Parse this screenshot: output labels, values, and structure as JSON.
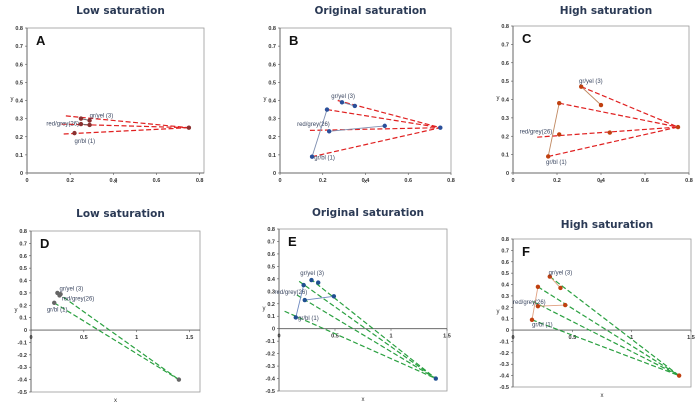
{
  "chart_data": [
    {
      "type": "scatter",
      "letter": "A",
      "title": "Low saturation",
      "xlabel": "x",
      "ylabel": "y",
      "xlim": [
        0,
        0.82
      ],
      "ylim": [
        0,
        0.8
      ],
      "xticks": [
        0,
        0.2,
        0.4,
        0.6,
        0.8
      ],
      "yticks": [
        0,
        0.1,
        0.2,
        0.3,
        0.4,
        0.5,
        0.6,
        0.7,
        0.8
      ],
      "dash_color": "#e02020",
      "point_color": "#8a3030",
      "solid_color": "#666666",
      "convergence": [
        0.75,
        0.25
      ],
      "points": [
        [
          0.25,
          0.3
        ],
        [
          0.29,
          0.29
        ],
        [
          0.29,
          0.265
        ],
        [
          0.25,
          0.27
        ],
        [
          0.22,
          0.22
        ]
      ],
      "solid_segments": [
        [
          0,
          1
        ],
        [
          3,
          2
        ]
      ],
      "dashed_from": [
        [
          0.18,
          0.315
        ],
        [
          0.16,
          0.27
        ],
        [
          0.17,
          0.215
        ]
      ],
      "annotations": [
        {
          "text": "gr/yel (3)",
          "x": 0.29,
          "y": 0.305
        },
        {
          "text": "red/grey(26)",
          "x": 0.09,
          "y": 0.262
        },
        {
          "text": "gr/bl (1)",
          "x": 0.22,
          "y": 0.165
        }
      ]
    },
    {
      "type": "scatter",
      "letter": "B",
      "title": "Original saturation",
      "xlabel": "x",
      "ylabel": "y",
      "xlim": [
        0,
        0.8
      ],
      "ylim": [
        0,
        0.8
      ],
      "xticks": [
        0,
        0.2,
        0.4,
        0.6,
        0.8
      ],
      "yticks": [
        0,
        0.1,
        0.2,
        0.3,
        0.4,
        0.5,
        0.6,
        0.7,
        0.8
      ],
      "dash_color": "#e02020",
      "point_color": "#2a4f9a",
      "solid_color": "#7f8fb0",
      "convergence": [
        0.75,
        0.25
      ],
      "points": [
        [
          0.29,
          0.39
        ],
        [
          0.35,
          0.37
        ],
        [
          0.22,
          0.35
        ],
        [
          0.23,
          0.23
        ],
        [
          0.49,
          0.26
        ],
        [
          0.15,
          0.09
        ]
      ],
      "solid_segments": [
        [
          2,
          5
        ],
        [
          3,
          4
        ],
        [
          0,
          1
        ]
      ],
      "dashed_from": [
        [
          0.27,
          0.4
        ],
        [
          0.22,
          0.35
        ],
        [
          0.14,
          0.235
        ],
        [
          0.15,
          0.09
        ]
      ],
      "annotations": [
        {
          "text": "gr/yel (3)",
          "x": 0.24,
          "y": 0.415
        },
        {
          "text": "red/grey(26)",
          "x": 0.08,
          "y": 0.26
        },
        {
          "text": "gr/bl (1)",
          "x": 0.16,
          "y": 0.075
        }
      ]
    },
    {
      "type": "scatter",
      "letter": "C",
      "title": "High saturation",
      "xlabel": "x",
      "ylabel": "y",
      "xlim": [
        0,
        0.8
      ],
      "ylim": [
        0,
        0.8
      ],
      "xticks": [
        0,
        0.2,
        0.4,
        0.6,
        0.8
      ],
      "yticks": [
        0,
        0.1,
        0.2,
        0.3,
        0.4,
        0.5,
        0.6,
        0.7,
        0.8
      ],
      "dash_color": "#e02020",
      "point_color": "#c04010",
      "solid_color": "#c08860",
      "convergence": [
        0.75,
        0.25
      ],
      "points": [
        [
          0.31,
          0.47
        ],
        [
          0.4,
          0.37
        ],
        [
          0.21,
          0.38
        ],
        [
          0.21,
          0.21
        ],
        [
          0.44,
          0.22
        ],
        [
          0.16,
          0.09
        ]
      ],
      "solid_segments": [
        [
          0,
          1
        ],
        [
          2,
          5
        ]
      ],
      "dashed_from": [
        [
          0.31,
          0.47
        ],
        [
          0.21,
          0.38
        ],
        [
          0.11,
          0.195
        ],
        [
          0.16,
          0.09
        ]
      ],
      "annotations": [
        {
          "text": "gr/yel (3)",
          "x": 0.3,
          "y": 0.49
        },
        {
          "text": "red/grey(26)",
          "x": 0.03,
          "y": 0.215
        },
        {
          "text": "gr/bl (1)",
          "x": 0.15,
          "y": 0.05
        }
      ]
    },
    {
      "type": "scatter",
      "letter": "D",
      "title": "Low saturation",
      "xlabel": "x",
      "ylabel": "y",
      "xlim": [
        0,
        1.6
      ],
      "ylim": [
        -0.5,
        0.8
      ],
      "xticks": [
        0,
        0.5,
        1,
        1.5
      ],
      "yticks": [
        -0.5,
        -0.4,
        -0.3,
        -0.2,
        -0.1,
        0,
        0.1,
        0.2,
        0.3,
        0.4,
        0.5,
        0.6,
        0.7,
        0.8
      ],
      "dash_color": "#2aa040",
      "point_color": "#666666",
      "solid_color": "#888888",
      "convergence": [
        1.4,
        -0.4
      ],
      "points": [
        [
          0.25,
          0.3
        ],
        [
          0.28,
          0.29
        ],
        [
          0.27,
          0.28
        ],
        [
          0.22,
          0.22
        ]
      ],
      "solid_segments": [
        [
          0,
          1
        ]
      ],
      "dashed_from": [
        [
          0.25,
          0.3
        ],
        [
          0.22,
          0.22
        ]
      ],
      "annotations": [
        {
          "text": "gr/yel (3)",
          "x": 0.27,
          "y": 0.32
        },
        {
          "text": "red/grey(26)",
          "x": 0.29,
          "y": 0.24
        },
        {
          "text": "gr/bl (1)",
          "x": 0.15,
          "y": 0.15
        }
      ]
    },
    {
      "type": "scatter",
      "letter": "E",
      "title": "Original saturation",
      "xlabel": "x",
      "ylabel": "y",
      "xlim": [
        0,
        1.5
      ],
      "ylim": [
        -0.5,
        0.8
      ],
      "xticks": [
        0,
        0.5,
        1,
        1.5
      ],
      "yticks": [
        -0.5,
        -0.4,
        -0.3,
        -0.2,
        -0.1,
        0,
        0.1,
        0.2,
        0.3,
        0.4,
        0.5,
        0.6,
        0.7,
        0.8
      ],
      "dash_color": "#2aa040",
      "point_color": "#1f4f90",
      "solid_color": "#6d88c0",
      "convergence": [
        1.4,
        -0.4
      ],
      "points": [
        [
          0.29,
          0.39
        ],
        [
          0.35,
          0.37
        ],
        [
          0.22,
          0.35
        ],
        [
          0.23,
          0.23
        ],
        [
          0.49,
          0.26
        ],
        [
          0.15,
          0.09
        ]
      ],
      "solid_segments": [
        [
          2,
          5
        ],
        [
          3,
          4
        ]
      ],
      "dashed_from": [
        [
          0.28,
          0.4
        ],
        [
          0.18,
          0.38
        ],
        [
          0.16,
          0.27
        ],
        [
          0.05,
          0.14
        ]
      ],
      "annotations": [
        {
          "text": "gr/yel (3)",
          "x": 0.19,
          "y": 0.43
        },
        {
          "text": "red/grey(26)",
          "x": -0.04,
          "y": 0.28
        },
        {
          "text": "gr/bl (1)",
          "x": 0.17,
          "y": 0.07
        }
      ]
    },
    {
      "type": "scatter",
      "letter": "F",
      "title": "High saturation",
      "xlabel": "x",
      "ylabel": "y",
      "xlim": [
        0,
        1.5
      ],
      "ylim": [
        -0.5,
        0.8
      ],
      "xticks": [
        0,
        0.5,
        1,
        1.5
      ],
      "yticks": [
        -0.5,
        -0.4,
        -0.3,
        -0.2,
        -0.1,
        0,
        0.1,
        0.2,
        0.3,
        0.4,
        0.5,
        0.6,
        0.7,
        0.8
      ],
      "dash_color": "#2aa040",
      "point_color": "#c04010",
      "solid_color": "#e0a080",
      "convergence": [
        1.4,
        -0.4
      ],
      "points": [
        [
          0.31,
          0.47
        ],
        [
          0.4,
          0.37
        ],
        [
          0.21,
          0.38
        ],
        [
          0.21,
          0.21
        ],
        [
          0.44,
          0.22
        ],
        [
          0.16,
          0.09
        ]
      ],
      "solid_segments": [
        [
          0,
          1
        ],
        [
          2,
          5
        ],
        [
          3,
          4
        ]
      ],
      "dashed_from": [
        [
          0.31,
          0.47
        ],
        [
          0.21,
          0.38
        ],
        [
          0.17,
          0.25
        ],
        [
          0.16,
          0.09
        ]
      ],
      "annotations": [
        {
          "text": "gr/yel (3)",
          "x": 0.3,
          "y": 0.49
        },
        {
          "text": "red/grey(26)",
          "x": 0.0,
          "y": 0.23
        },
        {
          "text": "gr/bl (1)",
          "x": 0.16,
          "y": 0.03
        }
      ]
    }
  ]
}
